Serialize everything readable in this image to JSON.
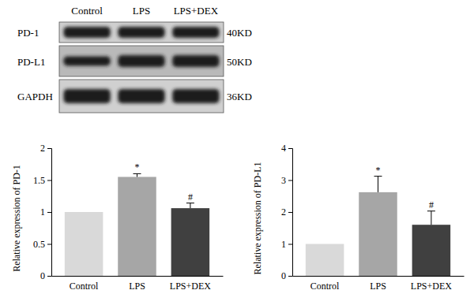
{
  "chart_data": [
    {
      "type": "bar",
      "y_label": "Relative expression of PD-1",
      "categories": [
        "Control",
        "LPS",
        "LPS+DEX"
      ],
      "values": [
        1,
        1.55,
        1.06
      ],
      "errors": [
        null,
        0.05,
        0.08
      ],
      "significance": [
        null,
        "*",
        "#"
      ],
      "colors": [
        "#d9d9d9",
        "#a6a6a6",
        "#404040"
      ],
      "ylim": [
        0,
        2
      ],
      "yticks": [
        0,
        0.5,
        1,
        1.5,
        2
      ],
      "grid": false
    },
    {
      "type": "bar",
      "y_label": "Relative expression of PD-L1",
      "categories": [
        "Control",
        "LPS",
        "LPS+DEX"
      ],
      "values": [
        1,
        2.62,
        1.6
      ],
      "errors": [
        null,
        0.5,
        0.43
      ],
      "significance": [
        null,
        "*",
        "#"
      ],
      "colors": [
        "#d9d9d9",
        "#a6a6a6",
        "#404040"
      ],
      "ylim": [
        0,
        4
      ],
      "yticks": [
        0,
        1,
        2,
        3,
        4
      ],
      "grid": false
    }
  ],
  "blot": {
    "columns": [
      "Control",
      "LPS",
      "LPS+DEX"
    ],
    "rows": [
      {
        "label": "PD-1",
        "size": "40KD"
      },
      {
        "label": "PD-L1",
        "size": "50KD"
      },
      {
        "label": "GAPDH",
        "size": "36KD"
      }
    ]
  }
}
